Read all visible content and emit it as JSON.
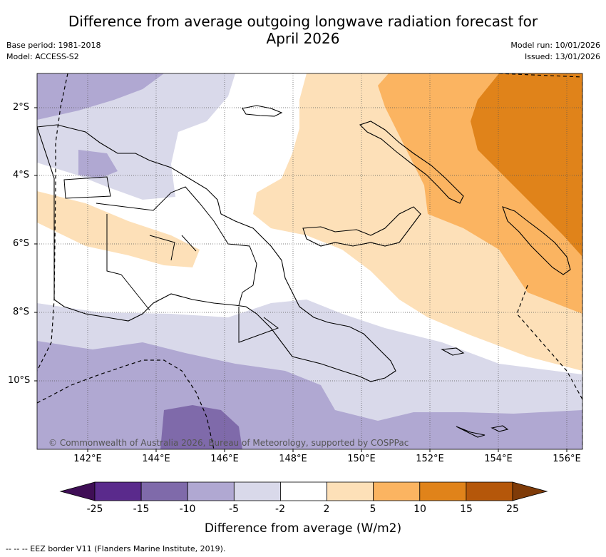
{
  "title_line1": "Difference from average outgoing longwave radiation forecast for",
  "title_line2": "April 2026",
  "base_period": "Base period: 1981-2018",
  "model": "Model: ACCESS-S2",
  "model_run": "Model run: 10/01/2026",
  "issued": "Issued: 13/01/2026",
  "y_ticks": [
    "2°S",
    "4°S",
    "6°S",
    "8°S",
    "10°S"
  ],
  "x_ticks": [
    "142°E",
    "144°E",
    "146°E",
    "148°E",
    "150°E",
    "152°E",
    "154°E",
    "156°E"
  ],
  "copyright": "© Commonwealth of Australia 2026, Bureau of Meteorology, supported by COSPPac",
  "colorbar": {
    "ticks": [
      "-25",
      "-15",
      "-10",
      "-5",
      "-2",
      "2",
      "5",
      "10",
      "15",
      "25"
    ],
    "colors": [
      "#3f0e56",
      "#5a2a8c",
      "#7f6aaa",
      "#b0a8d2",
      "#d9d9ea",
      "#ffffff",
      "#fde0b8",
      "#fbb461",
      "#e0831a",
      "#b5570a",
      "#7f3b08"
    ],
    "label": "Difference from average (W/m2)"
  },
  "footer": "--  --  -- EEZ border V11 (Flanders Marine Institute, 2019)."
}
